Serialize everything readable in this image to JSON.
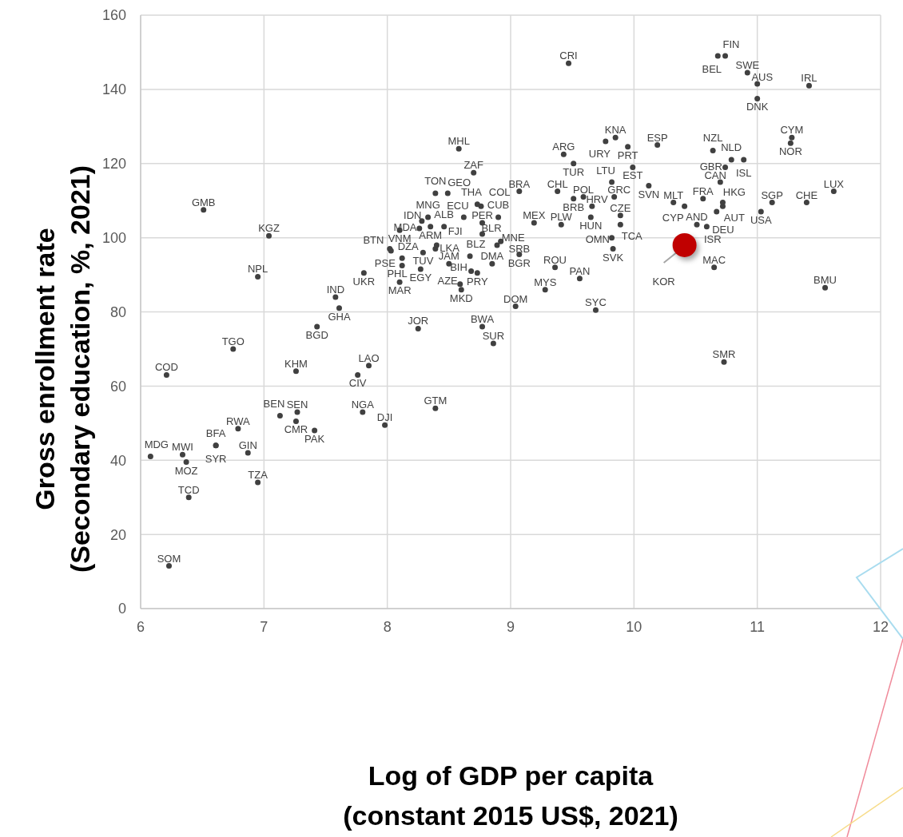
{
  "chart_data": {
    "type": "scatter",
    "xlabel": "Log of GDP per capita\n(constant 2015 US$, 2021)",
    "ylabel": "Gross enrollment rate\n(Secondary education, %, 2021)",
    "xlim": [
      6,
      12
    ],
    "xticks": [
      6,
      7,
      8,
      9,
      10,
      11,
      12
    ],
    "ylim": [
      0,
      160
    ],
    "yticks": [
      0,
      20,
      40,
      60,
      80,
      100,
      120,
      140,
      160
    ],
    "grid": true,
    "series": [
      {
        "color": "#404040",
        "marker": "circle",
        "value_labels": [
          "CRI",
          "BEL",
          "FIN",
          "SWE",
          "AUS",
          "IRL",
          "DNK",
          "CYM",
          "NOR",
          "KNA",
          "URY",
          "PRT",
          "ESP",
          "MHL",
          "NZL",
          "ARG",
          "NLD",
          "ISL",
          "TUR",
          "GBR",
          "EST",
          "ZAF",
          "LTU",
          "CAN",
          "SVN",
          "BRA",
          "TON",
          "GEO",
          "THA",
          "COL",
          "CHL",
          "BRB",
          "POL",
          "GRC",
          "HRV",
          "MLT",
          "CYP",
          "FRA",
          "HKG",
          "AUT",
          "DEU",
          "SGP",
          "USA",
          "CHE",
          "LUX",
          "HUN",
          "CZE",
          "TCA",
          "AND",
          "ISR",
          "PLW",
          "MEX",
          "OMN",
          "SVK",
          "MAC",
          "BMU",
          "SMR",
          "ROU",
          "PAN",
          "MYS",
          "DOM",
          "SYC",
          "BGR",
          "DMA",
          "BLZ",
          "PRY",
          "BIH",
          "AZE",
          "MKD",
          "JAM",
          "EGY",
          "PHL",
          "DZA",
          "PSE",
          "BTN",
          "TUV",
          "LKA",
          "FJI",
          "MNG",
          "ECU",
          "CUB",
          "IDN",
          "PER",
          "ALB",
          "ARM",
          "VNM",
          "MDA",
          "BLR",
          "MNE",
          "SRB",
          "UKR",
          "MAR",
          "JOR",
          "BWA",
          "SUR",
          "GTM",
          "NGA",
          "DJI",
          "LAO",
          "CIV",
          "KHM",
          "IND",
          "GHA",
          "BGD",
          "NPL",
          "KGZ",
          "GMB",
          "TGO",
          "COD",
          "SEN",
          "BEN",
          "CMR",
          "PAK",
          "RWA",
          "BFA",
          "SYR",
          "GIN",
          "MWI",
          "MDG",
          "MOZ",
          "TZA",
          "TCD",
          "SOM"
        ],
        "x": [
          9.47,
          10.68,
          10.74,
          10.92,
          11.0,
          11.42,
          11.0,
          11.28,
          11.27,
          9.85,
          9.77,
          9.95,
          10.19,
          8.58,
          10.64,
          9.43,
          10.79,
          10.89,
          9.51,
          10.74,
          9.99,
          8.7,
          9.82,
          10.7,
          10.12,
          9.07,
          8.39,
          8.49,
          8.73,
          8.76,
          9.38,
          9.51,
          9.59,
          9.84,
          9.66,
          10.32,
          10.41,
          10.56,
          10.72,
          10.72,
          10.67,
          11.12,
          11.03,
          11.4,
          11.62,
          9.65,
          9.89,
          9.89,
          10.51,
          10.59,
          9.41,
          9.19,
          9.82,
          9.83,
          10.65,
          11.55,
          10.73,
          9.36,
          9.56,
          9.28,
          9.04,
          9.69,
          9.07,
          8.85,
          8.67,
          8.73,
          8.68,
          8.59,
          8.6,
          8.5,
          8.27,
          8.12,
          8.12,
          8.03,
          8.02,
          8.29,
          8.39,
          8.4,
          8.33,
          8.62,
          8.9,
          8.28,
          8.77,
          8.46,
          8.35,
          8.1,
          8.26,
          8.77,
          8.92,
          8.89,
          7.81,
          8.1,
          8.25,
          8.77,
          8.86,
          8.39,
          7.8,
          7.98,
          7.85,
          7.76,
          7.26,
          7.58,
          7.61,
          7.43,
          6.95,
          7.04,
          6.51,
          6.75,
          6.21,
          7.27,
          7.13,
          7.26,
          7.41,
          6.79,
          6.61,
          6.61,
          6.87,
          6.34,
          6.08,
          6.37,
          6.95,
          6.39,
          6.23
        ],
        "values": [
          147,
          149,
          149,
          144.5,
          141.5,
          141,
          137.5,
          127,
          125.5,
          127,
          126,
          124.5,
          125,
          124,
          123.5,
          122.5,
          121,
          121,
          120,
          119,
          119,
          117.5,
          115,
          115,
          114,
          112.5,
          112,
          112,
          109,
          108.5,
          112.5,
          110.5,
          111,
          111,
          108.5,
          109.5,
          108.5,
          110.5,
          109.5,
          108.5,
          107,
          109.5,
          107,
          109.5,
          112.5,
          105.5,
          106,
          103.5,
          103.5,
          103,
          103.5,
          104,
          100,
          97,
          92,
          86.5,
          66.5,
          92,
          89,
          86,
          81.5,
          80.5,
          95.5,
          93,
          95,
          90.5,
          91,
          87.5,
          86,
          93,
          91.5,
          92.5,
          94.5,
          96.5,
          97,
          96,
          97,
          98,
          105.5,
          105.5,
          105.5,
          104.5,
          104,
          103,
          103,
          102,
          102.5,
          101,
          99,
          98,
          90.5,
          88,
          75.5,
          76,
          71.5,
          54,
          53,
          49.5,
          65.5,
          63,
          64,
          84,
          81,
          76,
          89.5,
          100.5,
          107.5,
          70,
          63,
          53,
          52,
          50.5,
          48,
          48.5,
          44,
          44,
          42,
          41.5,
          41,
          39.5,
          34,
          30,
          11.5
        ]
      },
      {
        "color": "#c00000",
        "marker": "circle",
        "value_labels": [
          "KOR"
        ],
        "x": [
          10.41
        ],
        "values": [
          98
        ]
      }
    ]
  }
}
